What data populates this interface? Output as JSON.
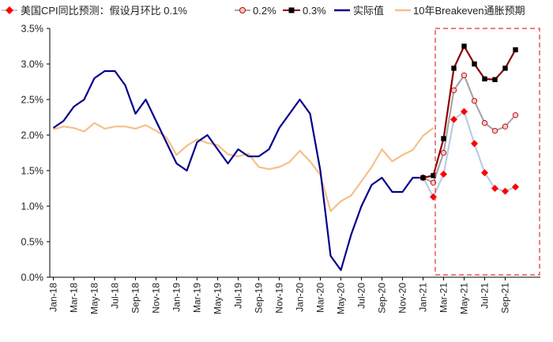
{
  "chart_data": {
    "type": "line",
    "title": "",
    "xlabel": "",
    "ylabel": "",
    "ylim": [
      0,
      3.5
    ],
    "y_tick_labels": [
      "0.0%",
      "0.5%",
      "1.0%",
      "1.5%",
      "2.0%",
      "2.5%",
      "3.0%",
      "3.5%"
    ],
    "x_tick_labels": [
      "Jan-18",
      "Mar-18",
      "May-18",
      "Jul-18",
      "Sep-18",
      "Nov-18",
      "Jan-19",
      "Mar-19",
      "May-19",
      "Jul-19",
      "Sep-19",
      "Nov-19",
      "Jan-20",
      "Mar-20",
      "May-20",
      "Jul-20",
      "Sep-20",
      "Nov-20",
      "Jan-21",
      "Mar-21",
      "May-21",
      "Jul-21",
      "Sep-21"
    ],
    "legend_position": "top",
    "annotation_box": "dashed red box around Jan-21 to Dec-21 forecast region",
    "annotation_label": "",
    "series": [
      {
        "name": "美国CPI同比预测：假设月环比 0.1%",
        "color": "#ff0000",
        "start_index": 36,
        "values": [
          1.4,
          1.13,
          1.45,
          2.22,
          2.33,
          1.88,
          1.47,
          1.25,
          1.21,
          1.27
        ]
      },
      {
        "name": "0.2%",
        "color": "#c00000",
        "start_index": 36,
        "values": [
          1.4,
          1.33,
          1.75,
          2.63,
          2.84,
          2.48,
          2.17,
          2.06,
          2.12,
          2.28
        ]
      },
      {
        "name": "0.3%",
        "color": "#000000",
        "start_index": 36,
        "values": [
          1.4,
          1.43,
          1.95,
          2.94,
          3.25,
          3.0,
          2.79,
          2.78,
          2.94,
          3.2
        ]
      },
      {
        "name": "实际值",
        "color": "#00008b",
        "start_index": 0,
        "values": [
          2.1,
          2.2,
          2.4,
          2.5,
          2.8,
          2.9,
          2.9,
          2.7,
          2.3,
          2.5,
          2.2,
          1.9,
          1.6,
          1.5,
          1.9,
          2.0,
          1.8,
          1.6,
          1.8,
          1.7,
          1.7,
          1.8,
          2.1,
          2.3,
          2.5,
          2.3,
          1.5,
          0.3,
          0.1,
          0.6,
          1.0,
          1.3,
          1.4,
          1.2,
          1.2,
          1.4,
          1.4
        ]
      },
      {
        "name": "10年Breakeven通胀预期",
        "color": "#f5c08a",
        "start_index": 0,
        "values": [
          2.08,
          2.12,
          2.1,
          2.05,
          2.17,
          2.09,
          2.12,
          2.12,
          2.09,
          2.14,
          2.06,
          1.97,
          1.72,
          1.85,
          1.94,
          1.89,
          1.86,
          1.73,
          1.7,
          1.74,
          1.55,
          1.52,
          1.55,
          1.62,
          1.78,
          1.63,
          1.44,
          0.93,
          1.07,
          1.15,
          1.35,
          1.55,
          1.8,
          1.63,
          1.72,
          1.79,
          1.99,
          2.1
        ]
      }
    ]
  }
}
